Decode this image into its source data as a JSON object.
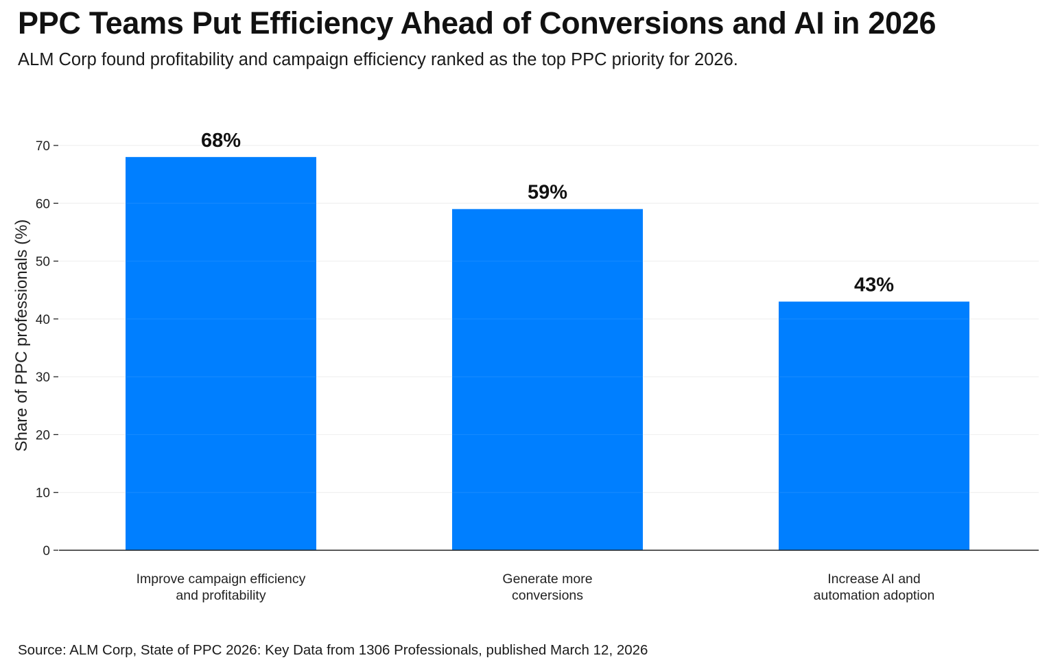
{
  "chart_data": {
    "type": "bar",
    "title": "PPC Teams Put Efficiency Ahead of Conversions and AI in 2026",
    "subtitle": "ALM Corp found profitability and campaign efficiency ranked as the top PPC priority for 2026.",
    "source": "Source: ALM Corp, State of PPC 2026: Key Data from 1306 Professionals, published March 12, 2026",
    "xlabel": "",
    "ylabel": "Share of PPC professionals (%)",
    "ylim": [
      0,
      70
    ],
    "yticks": [
      0,
      10,
      20,
      30,
      40,
      50,
      60,
      70
    ],
    "grid": true,
    "legend": "none",
    "bar_color": "#007FFF",
    "categories": [
      [
        "Improve campaign efficiency",
        "and profitability"
      ],
      [
        "Generate more",
        "conversions"
      ],
      [
        "Increase AI and",
        "automation adoption"
      ]
    ],
    "values": [
      68,
      59,
      43
    ],
    "data_labels": [
      "68%",
      "59%",
      "43%"
    ]
  }
}
